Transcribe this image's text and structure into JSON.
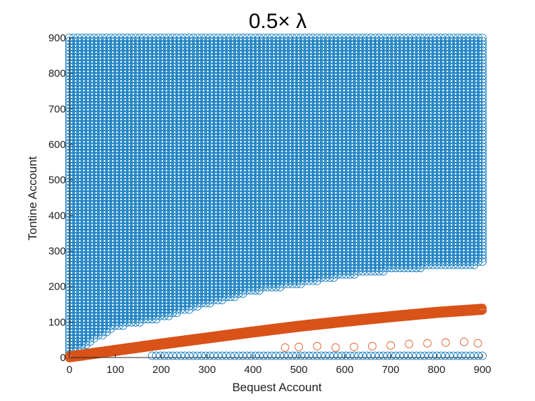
{
  "chart_data": {
    "type": "scatter",
    "title": "0.5× λ",
    "xlabel": "Bequest Account",
    "ylabel": "Tontine Account",
    "xlim": [
      0,
      900
    ],
    "ylim": [
      0,
      900
    ],
    "xticks": [
      "0",
      "100",
      "200",
      "300",
      "400",
      "500",
      "600",
      "700",
      "800",
      "900"
    ],
    "yticks": [
      "0",
      "100",
      "200",
      "300",
      "400",
      "500",
      "600",
      "700",
      "800",
      "900"
    ],
    "grid": false,
    "marker": "open-circle",
    "series": [
      {
        "color": "#0072BD",
        "description_region": "grid of points filling area above lower boundary",
        "grid_step": 9,
        "x_range": [
          0,
          900
        ],
        "y_max": 900,
        "lower_boundary": [
          [
            0,
            5
          ],
          [
            100,
            85
          ],
          [
            200,
            110
          ],
          [
            300,
            150
          ],
          [
            400,
            185
          ],
          [
            500,
            205
          ],
          [
            600,
            230
          ],
          [
            700,
            245
          ],
          [
            800,
            255
          ],
          [
            900,
            262
          ]
        ],
        "bottom_row": {
          "y": 5,
          "x_range": [
            180,
            900
          ]
        }
      },
      {
        "color": "#D95319",
        "description_region": "dense band of points",
        "band": [
          [
            0,
            2
          ],
          [
            100,
            20
          ],
          [
            200,
            38
          ],
          [
            300,
            55
          ],
          [
            400,
            72
          ],
          [
            500,
            88
          ],
          [
            600,
            102
          ],
          [
            700,
            115
          ],
          [
            800,
            127
          ],
          [
            900,
            136
          ]
        ],
        "band_width": 8,
        "extra": [
          [
            470,
            28
          ],
          [
            500,
            30
          ],
          [
            540,
            32
          ],
          [
            580,
            28
          ],
          [
            620,
            30
          ],
          [
            660,
            32
          ],
          [
            700,
            34
          ],
          [
            740,
            38
          ],
          [
            780,
            40
          ],
          [
            820,
            42
          ],
          [
            860,
            44
          ],
          [
            890,
            40
          ]
        ]
      }
    ]
  }
}
